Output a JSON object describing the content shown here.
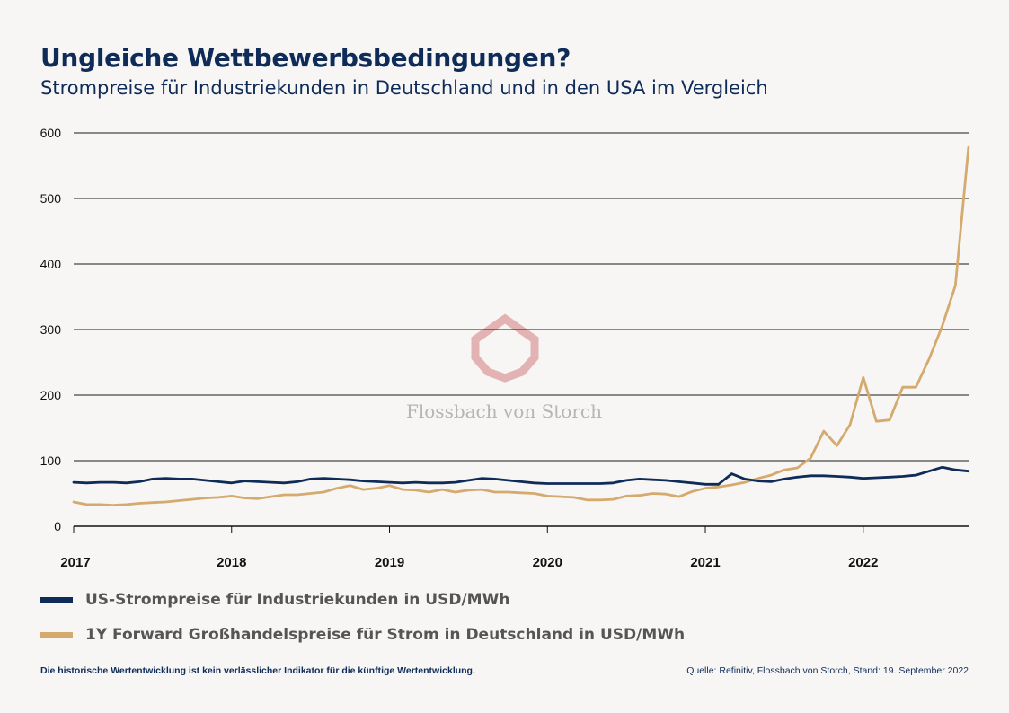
{
  "header": {
    "title": "Ungleiche Wettbewerbsbedingungen?",
    "subtitle": "Strompreise für Industriekunden in Deutschland und in den USA im Vergleich"
  },
  "watermark": {
    "text": "Flossbach von Storch"
  },
  "footer": {
    "disclaimer": "Die historische Wertentwicklung ist kein verlässlicher Indikator für die künftige Wertentwicklung.",
    "source": "Quelle: Refinitiv, Flossbach von Storch, Stand: 19. September 2022"
  },
  "chart_data": {
    "type": "line",
    "title": "Ungleiche Wettbewerbsbedingungen?",
    "subtitle": "Strompreise für Industriekunden in Deutschland und in den USA im Vergleich",
    "xlabel": "",
    "ylabel": "",
    "xlim": [
      2017,
      2022.667
    ],
    "ylim": [
      0,
      600
    ],
    "y_ticks": [
      0,
      100,
      200,
      300,
      400,
      500,
      600
    ],
    "x_ticks": [
      2017,
      2018,
      2019,
      2020,
      2021,
      2022
    ],
    "x_tick_labels": [
      "2017",
      "2018",
      "2019",
      "2020",
      "2021",
      "2022"
    ],
    "grid": "horizontal",
    "legend_position": "bottom",
    "series": [
      {
        "name": "US-Strompreise für Industriekunden in USD/MWh",
        "color": "#0f2c59",
        "values": [
          67,
          66,
          67,
          67,
          66,
          68,
          72,
          73,
          72,
          72,
          70,
          68,
          66,
          69,
          68,
          67,
          66,
          68,
          72,
          73,
          72,
          71,
          69,
          68,
          67,
          66,
          67,
          66,
          66,
          67,
          70,
          73,
          72,
          70,
          68,
          66,
          65,
          65,
          65,
          65,
          65,
          66,
          70,
          72,
          71,
          70,
          68,
          66,
          64,
          64,
          80,
          72,
          69,
          68,
          72,
          75,
          77,
          77,
          76,
          75,
          73,
          74,
          75,
          76,
          78,
          84,
          90,
          86,
          84
        ],
        "x_start": 2017,
        "x_step_months": 1
      },
      {
        "name": "1Y Forward Großhandelspreise für Strom in Deutschland in USD/MWh",
        "color": "#d4aa6e",
        "values": [
          37,
          33,
          33,
          32,
          33,
          35,
          36,
          37,
          39,
          41,
          43,
          44,
          46,
          43,
          42,
          45,
          48,
          48,
          50,
          52,
          58,
          62,
          56,
          58,
          62,
          56,
          55,
          52,
          56,
          52,
          55,
          56,
          52,
          52,
          51,
          50,
          46,
          45,
          44,
          40,
          40,
          41,
          46,
          47,
          50,
          49,
          45,
          53,
          58,
          60,
          63,
          67,
          73,
          78,
          86,
          89,
          104,
          145,
          123,
          155,
          227,
          160,
          162,
          212,
          212,
          255,
          305,
          367,
          578
        ],
        "x_start": 2017,
        "x_step_months": 1
      }
    ]
  }
}
